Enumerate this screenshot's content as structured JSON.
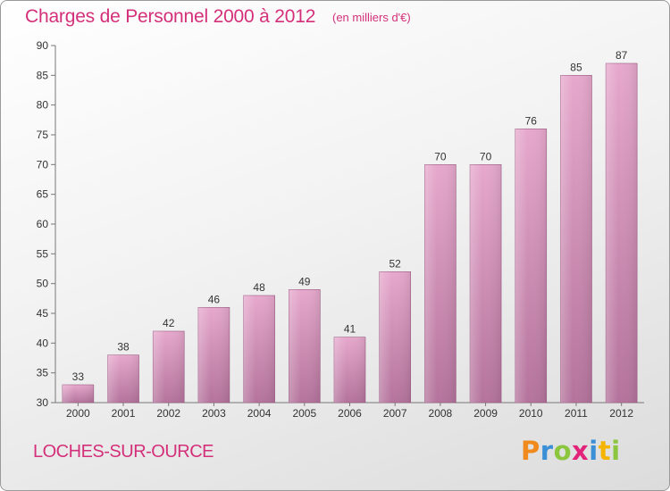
{
  "header": {
    "title": "Charges de Personnel 2000 à 2012",
    "unit": "(en milliers d'€)"
  },
  "footer": {
    "town": "LOCHES-SUR-OURCE",
    "logo_letters": [
      "P",
      "r",
      "o",
      "x",
      "i",
      "t",
      "i"
    ],
    "logo_colors": [
      "#f08a1c",
      "#3a8fd6",
      "#8cc63f",
      "#e2237a",
      "#3a8fd6",
      "#f5b400",
      "#8cc63f"
    ]
  },
  "colors": {
    "bar_top": "#e6a8cc",
    "bar_bottom": "#b4739c",
    "bar_edge": "#9c5a84",
    "title": "#d4307a"
  },
  "chart_data": {
    "type": "bar",
    "title": "Charges de Personnel 2000 à 2012",
    "subtitle": "(en milliers d'€)",
    "categories": [
      "2000",
      "2001",
      "2002",
      "2003",
      "2004",
      "2005",
      "2006",
      "2007",
      "2008",
      "2009",
      "2010",
      "2011",
      "2012"
    ],
    "values": [
      33,
      38,
      42,
      46,
      48,
      49,
      41,
      52,
      70,
      70,
      76,
      85,
      87
    ],
    "ylim": [
      30,
      90
    ],
    "yticks": [
      30,
      35,
      40,
      45,
      50,
      55,
      60,
      65,
      70,
      75,
      80,
      85,
      90
    ],
    "grid": false,
    "data_labels": true
  }
}
